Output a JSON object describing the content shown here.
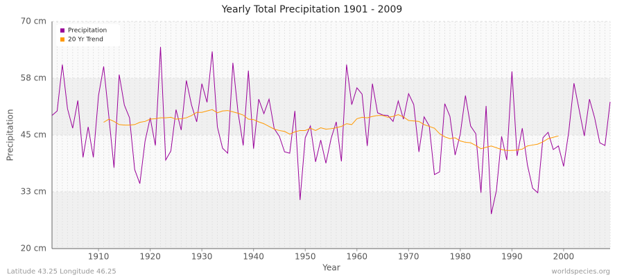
{
  "chart_data": {
    "type": "line",
    "title": "Yearly Total Precipitation 1901 - 2009",
    "x_label": "Year",
    "y_label": "Precipitation",
    "footer_left": "Latitude 43.25 Longitude 46.25",
    "footer_right": "worldspecies.org",
    "x": [
      1901,
      1902,
      1903,
      1904,
      1905,
      1906,
      1907,
      1908,
      1909,
      1910,
      1911,
      1912,
      1913,
      1914,
      1915,
      1916,
      1917,
      1918,
      1919,
      1920,
      1921,
      1922,
      1923,
      1924,
      1925,
      1926,
      1927,
      1928,
      1929,
      1930,
      1931,
      1932,
      1933,
      1934,
      1935,
      1936,
      1937,
      1938,
      1939,
      1940,
      1941,
      1942,
      1943,
      1944,
      1945,
      1946,
      1947,
      1948,
      1949,
      1950,
      1951,
      1952,
      1953,
      1954,
      1955,
      1956,
      1957,
      1958,
      1959,
      1960,
      1961,
      1962,
      1963,
      1964,
      1965,
      1966,
      1967,
      1968,
      1969,
      1970,
      1971,
      1972,
      1973,
      1974,
      1975,
      1976,
      1977,
      1978,
      1979,
      1980,
      1981,
      1982,
      1983,
      1984,
      1985,
      1986,
      1987,
      1988,
      1989,
      1990,
      1991,
      1992,
      1993,
      1994,
      1995,
      1996,
      1997,
      1998,
      1999,
      2000,
      2001,
      2002,
      2003,
      2004,
      2005,
      2006,
      2007,
      2008,
      2009
    ],
    "series": [
      {
        "name": "Precipitation",
        "color": "#990099",
        "values": [
          49.3,
          50.3,
          60.5,
          50.8,
          46.5,
          52.6,
          40.1,
          46.8,
          40.1,
          53.7,
          60.1,
          49.1,
          37.8,
          58.3,
          51.6,
          48.8,
          37.4,
          34.3,
          43.6,
          48.8,
          42.7,
          64.4,
          39.5,
          41.5,
          50.6,
          46.1,
          57.0,
          51.6,
          47.9,
          56.3,
          52.2,
          63.4,
          46.8,
          42.1,
          41.0,
          60.9,
          50.0,
          42.7,
          59.2,
          42.0,
          52.9,
          49.7,
          52.9,
          46.4,
          44.7,
          41.3,
          41.0,
          50.3,
          30.7,
          44.4,
          47.0,
          39.1,
          43.9,
          38.8,
          44.2,
          47.9,
          39.2,
          60.5,
          51.7,
          55.4,
          54.0,
          42.6,
          56.3,
          49.9,
          49.4,
          49.3,
          48.0,
          52.5,
          48.5,
          54.1,
          51.7,
          41.3,
          49.0,
          47.0,
          36.3,
          36.9,
          51.9,
          49.1,
          40.6,
          45.2,
          53.7,
          47.0,
          45.3,
          32.3,
          51.4,
          27.6,
          32.8,
          44.7,
          39.5,
          59.0,
          40.4,
          46.5,
          38.4,
          33.3,
          32.3,
          44.4,
          45.6,
          41.8,
          42.6,
          38.1,
          45.8,
          56.4,
          50.6,
          44.8,
          52.9,
          48.8,
          43.3,
          42.7,
          52.3
        ]
      },
      {
        "name": "20 Yr Trend",
        "color": "#ff9900",
        "values": [
          null,
          null,
          null,
          null,
          null,
          null,
          null,
          null,
          null,
          null,
          47.8,
          48.5,
          48.0,
          47.3,
          47.2,
          47.2,
          47.3,
          47.8,
          48.0,
          48.5,
          48.6,
          48.8,
          48.8,
          48.9,
          48.5,
          48.6,
          48.8,
          49.3,
          50.0,
          50.0,
          50.3,
          50.6,
          49.9,
          50.3,
          50.4,
          50.1,
          49.8,
          49.4,
          48.5,
          48.4,
          47.9,
          47.5,
          46.9,
          46.3,
          46.0,
          45.8,
          45.2,
          45.7,
          46.0,
          46.0,
          46.5,
          46.0,
          46.6,
          46.3,
          46.4,
          46.6,
          46.9,
          47.5,
          47.3,
          48.6,
          48.9,
          48.8,
          49.1,
          49.3,
          49.3,
          48.9,
          49.1,
          49.5,
          49.0,
          48.2,
          48.1,
          48.0,
          47.3,
          46.9,
          46.5,
          45.3,
          44.6,
          44.2,
          44.4,
          43.7,
          43.4,
          43.3,
          42.7,
          42.0,
          42.3,
          42.6,
          42.2,
          41.8,
          41.6,
          41.6,
          41.7,
          41.9,
          42.6,
          42.8,
          43.0,
          43.5,
          44.2,
          44.5,
          44.8,
          null,
          null,
          null,
          null,
          null,
          null,
          null,
          null,
          null,
          null
        ]
      }
    ],
    "xlim": [
      1901,
      2009
    ],
    "xticks": [
      1910,
      1920,
      1930,
      1940,
      1950,
      1960,
      1970,
      1980,
      1990,
      2000
    ],
    "ylim": [
      20,
      70
    ],
    "yticks": [
      {
        "value": 20,
        "label": "20 cm"
      },
      {
        "value": 32.5,
        "label": "33 cm"
      },
      {
        "value": 45,
        "label": "45 cm"
      },
      {
        "value": 57.5,
        "label": "58 cm"
      },
      {
        "value": 70,
        "label": "70 cm"
      }
    ],
    "legend": "top-left",
    "grid": true
  }
}
